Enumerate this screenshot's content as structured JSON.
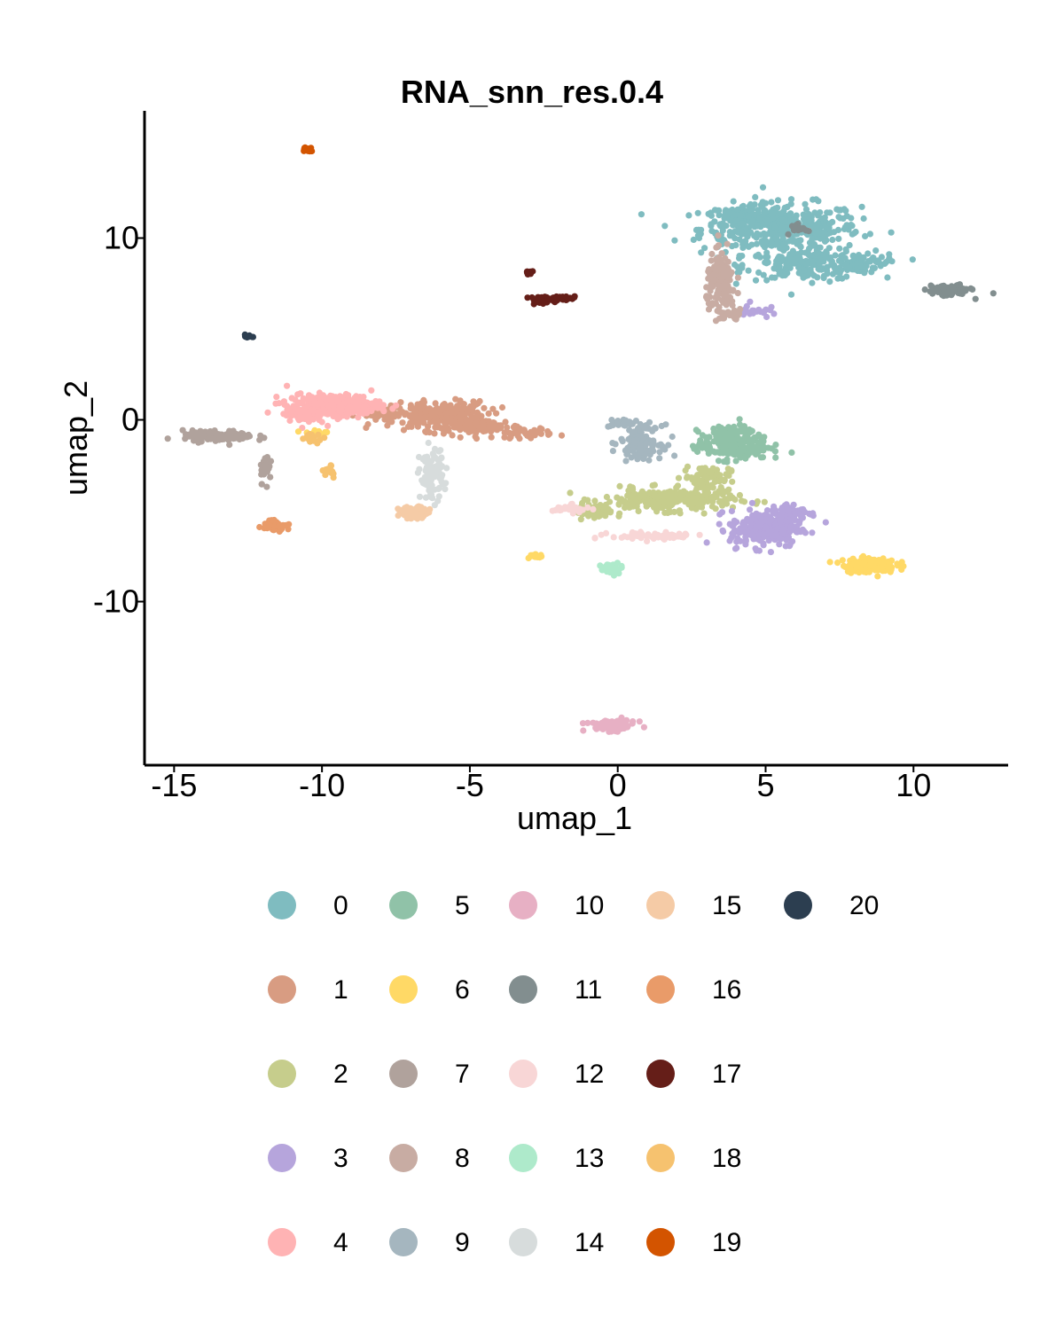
{
  "chart_data": {
    "type": "scatter",
    "title": "RNA_snn_res.0.4",
    "xlabel": "umap_1",
    "ylabel": "umap_2",
    "xlim": [
      -16,
      13.2
    ],
    "ylim": [
      -19,
      17
    ],
    "xticks": [
      {
        "value": -15,
        "label": "-15"
      },
      {
        "value": -10,
        "label": "-10"
      },
      {
        "value": -5,
        "label": "-5"
      },
      {
        "value": 0,
        "label": "0"
      },
      {
        "value": 5,
        "label": "5"
      },
      {
        "value": 10,
        "label": "10"
      }
    ],
    "yticks": [
      {
        "value": 10,
        "label": "10"
      },
      {
        "value": 0,
        "label": "0"
      },
      {
        "value": -10,
        "label": "-10"
      }
    ],
    "grid": false,
    "legend_position": "bottom",
    "clusters": [
      {
        "name": "0",
        "color": "#7fbcc0",
        "blobs": [
          [
            5.5,
            10.5,
            2.7,
            1.4,
            420
          ],
          [
            6.5,
            8.5,
            2.2,
            0.8,
            180
          ],
          [
            4.3,
            11.2,
            1.2,
            0.6,
            80
          ],
          [
            8.2,
            8.7,
            0.9,
            0.5,
            60
          ]
        ]
      },
      {
        "name": "1",
        "color": "#d89c82",
        "blobs": [
          [
            -6,
            0.2,
            1.6,
            0.8,
            260
          ],
          [
            -4.5,
            -0.4,
            1.2,
            0.4,
            80
          ],
          [
            -3.2,
            -0.7,
            1,
            0.3,
            40
          ],
          [
            -8,
            0.3,
            0.8,
            0.5,
            40
          ]
        ]
      },
      {
        "name": "2",
        "color": "#c6cd8c",
        "blobs": [
          [
            1.7,
            -4.4,
            2.2,
            0.6,
            260
          ],
          [
            3,
            -3.2,
            0.8,
            0.7,
            80
          ],
          [
            -0.8,
            -5.1,
            0.6,
            0.4,
            40
          ]
        ]
      },
      {
        "name": "3",
        "color": "#b6a5dc",
        "blobs": [
          [
            5,
            -6,
            1.2,
            1,
            240
          ],
          [
            5.9,
            -5.1,
            0.8,
            0.5,
            70
          ],
          [
            4.6,
            6,
            0.5,
            0.4,
            25
          ]
        ]
      },
      {
        "name": "4",
        "color": "#ffb3b4",
        "blobs": [
          [
            -9.6,
            0.8,
            1.6,
            0.6,
            260
          ],
          [
            -10.6,
            0.3,
            0.7,
            0.5,
            60
          ]
        ]
      },
      {
        "name": "5",
        "color": "#90c2a8",
        "blobs": [
          [
            3.9,
            -1.4,
            1.2,
            0.8,
            220
          ],
          [
            3.9,
            -0.6,
            0.7,
            0.3,
            50
          ]
        ]
      },
      {
        "name": "6",
        "color": "#ffd966",
        "blobs": [
          [
            8.5,
            -8,
            0.9,
            0.4,
            140
          ],
          [
            -2.8,
            -7.5,
            0.3,
            0.2,
            15
          ],
          [
            -10.2,
            -0.7,
            0.5,
            0.2,
            15
          ]
        ]
      },
      {
        "name": "7",
        "color": "#b0a29c",
        "blobs": [
          [
            -13.5,
            -0.9,
            1.2,
            0.3,
            120
          ],
          [
            -11.9,
            -2.6,
            0.2,
            0.8,
            30
          ]
        ]
      },
      {
        "name": "8",
        "color": "#c8aca3",
        "blobs": [
          [
            3.5,
            7.5,
            0.5,
            1.6,
            150
          ],
          [
            3.8,
            5.8,
            0.5,
            0.3,
            30
          ]
        ]
      },
      {
        "name": "9",
        "color": "#a5b6bf",
        "blobs": [
          [
            0.8,
            -1.2,
            0.7,
            0.9,
            120
          ],
          [
            0.2,
            -0.2,
            0.5,
            0.2,
            30
          ]
        ]
      },
      {
        "name": "10",
        "color": "#e7b0c4",
        "blobs": [
          [
            -0.2,
            -16.8,
            0.8,
            0.3,
            90
          ]
        ]
      },
      {
        "name": "11",
        "color": "#828e8f",
        "blobs": [
          [
            11.2,
            7.1,
            0.7,
            0.3,
            90
          ],
          [
            6.1,
            10.6,
            0.3,
            0.3,
            20
          ]
        ]
      },
      {
        "name": "12",
        "color": "#f8d6d6",
        "blobs": [
          [
            1.3,
            -6.4,
            1.5,
            0.2,
            70
          ],
          [
            -1.6,
            -4.9,
            0.6,
            0.2,
            30
          ]
        ]
      },
      {
        "name": "13",
        "color": "#aeeacb",
        "blobs": [
          [
            -0.2,
            -8.2,
            0.35,
            0.3,
            50
          ]
        ]
      },
      {
        "name": "14",
        "color": "#d7dcdc",
        "blobs": [
          [
            -6.3,
            -3,
            0.4,
            1.4,
            100
          ]
        ]
      },
      {
        "name": "15",
        "color": "#f5cba6",
        "blobs": [
          [
            -6.9,
            -5.1,
            0.5,
            0.3,
            70
          ]
        ]
      },
      {
        "name": "16",
        "color": "#e99b69",
        "blobs": [
          [
            -11.6,
            -5.8,
            0.4,
            0.3,
            60
          ]
        ]
      },
      {
        "name": "17",
        "color": "#651e18",
        "blobs": [
          [
            -2.5,
            6.6,
            0.5,
            0.2,
            40
          ],
          [
            -1.9,
            6.7,
            0.5,
            0.1,
            30
          ],
          [
            -3,
            8.1,
            0.1,
            0.1,
            10
          ]
        ]
      },
      {
        "name": "18",
        "color": "#f6c26f",
        "blobs": [
          [
            -10.3,
            -1,
            0.4,
            0.25,
            20
          ],
          [
            -9.7,
            -2.8,
            0.25,
            0.3,
            15
          ]
        ]
      },
      {
        "name": "19",
        "color": "#d35400",
        "blobs": [
          [
            -10.5,
            14.9,
            0.15,
            0.15,
            18
          ]
        ]
      },
      {
        "name": "20",
        "color": "#2c3e50",
        "blobs": [
          [
            -12.5,
            4.6,
            0.15,
            0.1,
            10
          ]
        ]
      }
    ]
  }
}
